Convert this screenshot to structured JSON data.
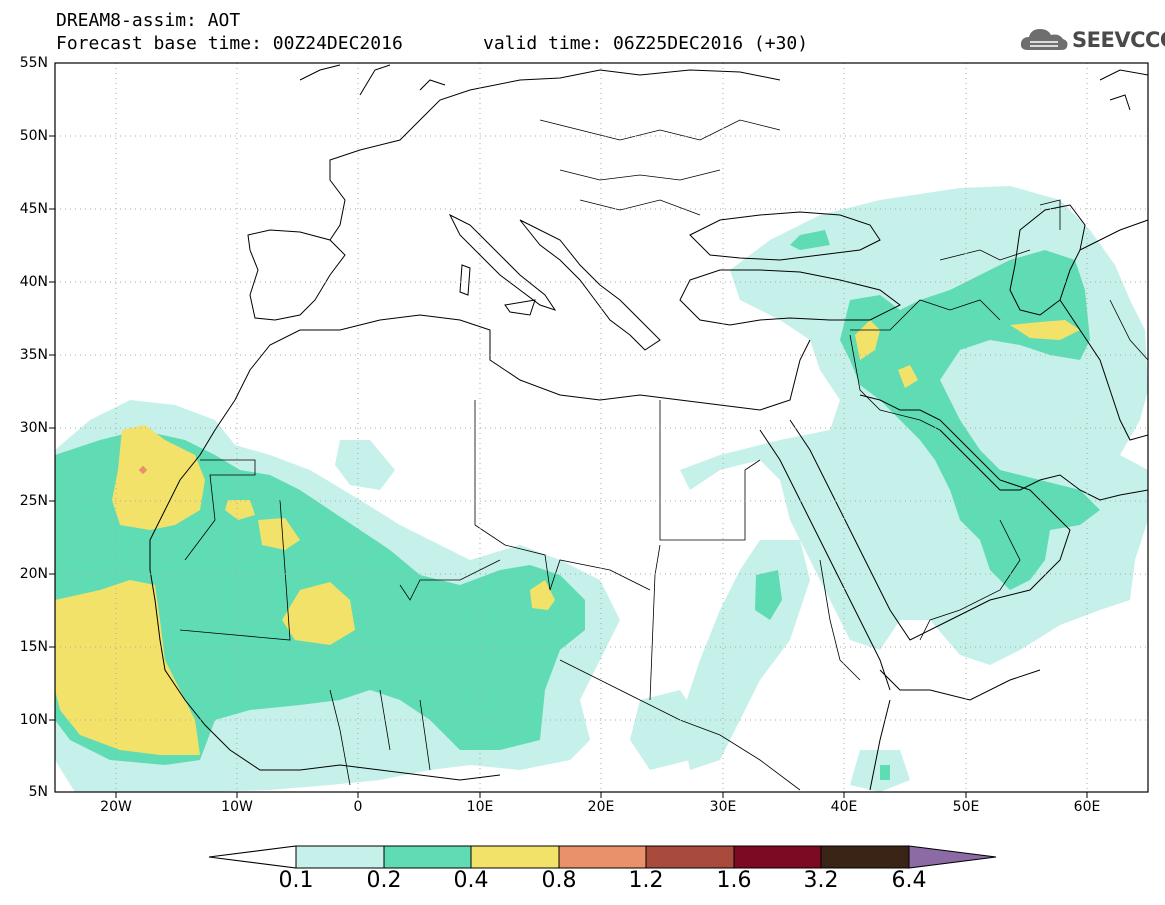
{
  "header": {
    "line1": "DREAM8-assim: AOT",
    "line2a": "Forecast base time: 00Z24DEC2016",
    "line2b": "valid time: 06Z25DEC2016 (+30)"
  },
  "logo": {
    "text": "SEEVCCC",
    "icon": "cloud-icon"
  },
  "map": {
    "lat_labels": [
      "55N",
      "50N",
      "45N",
      "40N",
      "35N",
      "30N",
      "25N",
      "20N",
      "15N",
      "10N",
      "5N"
    ],
    "lon_labels": [
      "20W",
      "10W",
      "0",
      "10E",
      "20E",
      "30E",
      "40E",
      "50E",
      "60E"
    ],
    "lon_range": [
      -25,
      65
    ],
    "lat_range": [
      5,
      55
    ]
  },
  "colorbar": {
    "labels": [
      "0.1",
      "0.2",
      "0.4",
      "0.8",
      "1.2",
      "1.6",
      "3.2",
      "6.4"
    ],
    "colors": [
      "#c6f0ea",
      "#5fdcb4",
      "#f2e26a",
      "#e8916a",
      "#a84a3c",
      "#7b0a22",
      "#3a2416",
      "#8c6aa4"
    ],
    "under_color": "#ffffff"
  }
}
